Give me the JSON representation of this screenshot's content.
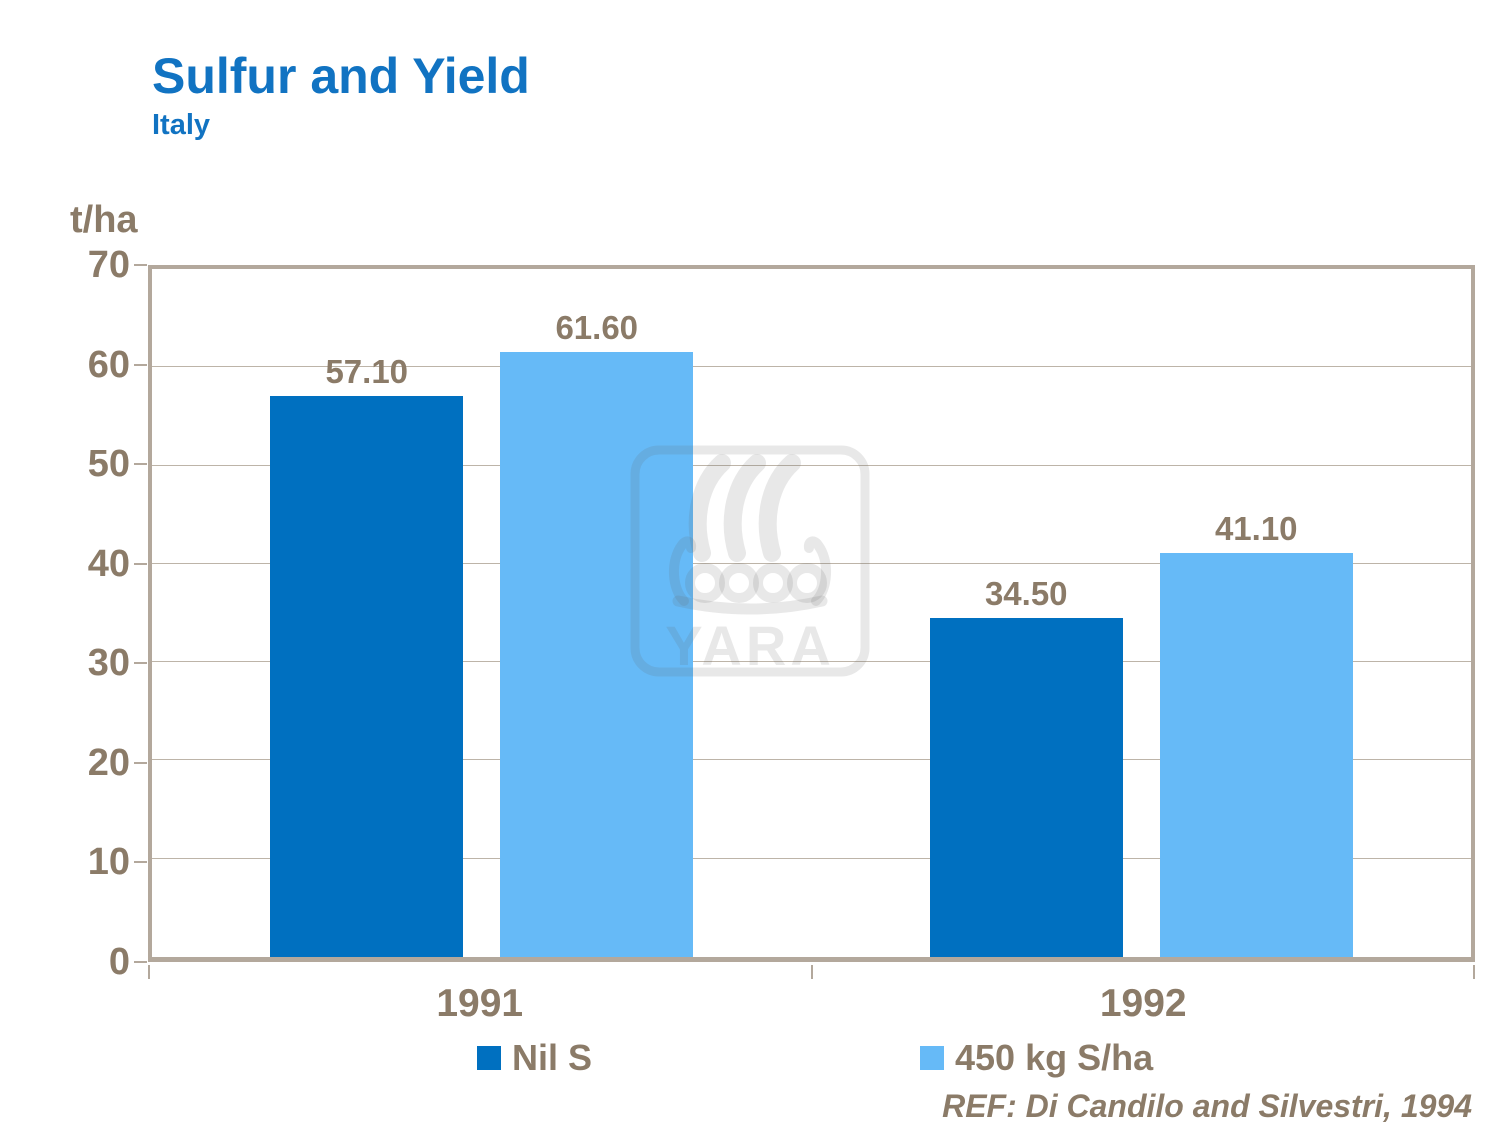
{
  "header": {
    "title": "Sulfur and Yield",
    "subtitle": "Italy"
  },
  "chart_data": {
    "type": "bar",
    "title": "Sulfur and Yield",
    "subtitle": "Italy",
    "ylabel": "t/ha",
    "xlabel": "",
    "ylim": [
      0,
      70
    ],
    "yticks": [
      0,
      10,
      20,
      30,
      40,
      50,
      60,
      70
    ],
    "grid": true,
    "legend_position": "bottom",
    "categories": [
      "1991",
      "1992"
    ],
    "series": [
      {
        "name": "Nil S",
        "color": "#0070C0",
        "values": [
          57.1,
          34.5
        ],
        "value_labels": [
          "57.10",
          "34.50"
        ]
      },
      {
        "name": "450 kg S/ha",
        "color": "#66BAF7",
        "values": [
          61.6,
          41.1
        ],
        "value_labels": [
          "61.60",
          "41.10"
        ]
      }
    ]
  },
  "footer": {
    "reference": "REF: Di Candilo and Silvestri, 1994"
  },
  "watermark": {
    "text": "YARA",
    "icon": "viking-ship-icon"
  },
  "colors": {
    "title_blue": "#1173C2",
    "bar_dark_blue": "#0070C0",
    "bar_light_blue": "#66BAF7",
    "text_brown": "#8B7B68",
    "axis_taupe": "#B3A89C",
    "gridline": "#BDB4A8"
  }
}
